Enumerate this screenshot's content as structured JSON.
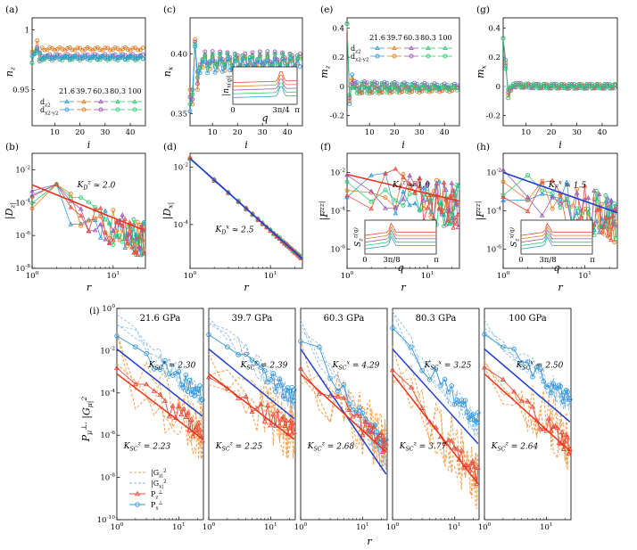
{
  "chart_data": [
    {
      "panel": "(a)",
      "type": "line",
      "xlabel": "i",
      "ylabel": "n_z",
      "xlim": [
        1,
        46
      ],
      "ylim": [
        0.92,
        1.01
      ],
      "xticks": [
        "10",
        "20",
        "30",
        "40"
      ],
      "yticks": [
        "0.95",
        "1"
      ],
      "legend": {
        "rows": [
          "d_z2",
          "d_x2-y2"
        ],
        "columns": [
          "21.6",
          "39.7",
          "60.3",
          "80.3",
          "100"
        ]
      },
      "series": [
        {
          "color": "#e67e22",
          "marker": "circle",
          "base": 0.984,
          "amp": 0.004
        },
        {
          "color": "#9b59b6",
          "marker": "circle",
          "base": 0.978,
          "amp": 0.005
        },
        {
          "color": "#2ecc71",
          "marker": "circle",
          "base": 0.976,
          "amp": 0.005
        },
        {
          "color": "#3498db",
          "marker": "circle",
          "base": 0.977,
          "amp": 0.005
        }
      ]
    },
    {
      "panel": "(c)",
      "type": "line",
      "xlabel": "i",
      "ylabel": "n_x",
      "xlim": [
        1,
        46
      ],
      "ylim": [
        0.34,
        0.43
      ],
      "xticks": [
        "10",
        "20",
        "30",
        "40"
      ],
      "yticks": [
        "0.35",
        "0.40"
      ],
      "inset": {
        "xlabel": "q",
        "ylabel": "|n_x(q)|",
        "xticks": [
          "0",
          "3π/4",
          "π"
        ]
      },
      "series": [
        {
          "color": "#e67e22",
          "base": 0.392,
          "amp": 0.006
        },
        {
          "color": "#9b59b6",
          "base": 0.396,
          "amp": 0.006
        },
        {
          "color": "#2ecc71",
          "base": 0.394,
          "amp": 0.006
        },
        {
          "color": "#3498db",
          "base": 0.39,
          "amp": 0.006
        }
      ]
    },
    {
      "panel": "(e)",
      "type": "line",
      "xlabel": "i",
      "ylabel": "m_z",
      "xlim": [
        1,
        46
      ],
      "ylim": [
        -0.27,
        0.47
      ],
      "xticks": [
        "10",
        "20",
        "30",
        "40"
      ],
      "yticks": [
        "-0.2",
        "0",
        "0.2",
        "0.4"
      ],
      "legend": {
        "rows": [
          "d_z2",
          "d_x2-y2"
        ],
        "columns": [
          "21.6",
          "39.7",
          "60.3",
          "80.3",
          "100"
        ]
      },
      "series": [
        {
          "color": "#3498db",
          "base": -0.01,
          "amp": 0.03
        },
        {
          "color": "#e67e22",
          "base": -0.02,
          "amp": 0.03
        },
        {
          "color": "#9b59b6",
          "base": 0.0,
          "amp": 0.03
        },
        {
          "color": "#2ecc71",
          "base": -0.01,
          "amp": 0.03
        }
      ]
    },
    {
      "panel": "(g)",
      "type": "line",
      "xlabel": "i",
      "ylabel": "m_x",
      "xlim": [
        1,
        46
      ],
      "ylim": [
        -0.27,
        0.47
      ],
      "xticks": [
        "10",
        "20",
        "30",
        "40"
      ],
      "yticks": [
        "-0.2",
        "0",
        "0.2",
        "0.4"
      ],
      "series": [
        {
          "color": "#3498db",
          "base": 0.0,
          "amp": 0.015
        },
        {
          "color": "#e67e22",
          "base": 0.0,
          "amp": 0.015
        },
        {
          "color": "#9b59b6",
          "base": 0.0,
          "amp": 0.015
        },
        {
          "color": "#2ecc71",
          "base": 0.0,
          "amp": 0.015
        }
      ]
    },
    {
      "panel": "(b)",
      "type": "line",
      "xscale": "log",
      "yscale": "log",
      "xlabel": "r",
      "ylabel": "|D_z|",
      "xlim": [
        1,
        25
      ],
      "ylim": [
        1e-08,
        0.1
      ],
      "xticks": [
        "10^0",
        "10^1"
      ],
      "yticks": [
        "10^-2",
        "10^-4",
        "10^-6",
        "10^-8"
      ],
      "annotation": "K_D^z ≈ 2.0",
      "fit_exponent": 2.0
    },
    {
      "panel": "(d)",
      "type": "line",
      "xscale": "log",
      "yscale": "log",
      "xlabel": "r",
      "ylabel": "|D_x|",
      "xlim": [
        1,
        25
      ],
      "ylim": [
        3e-06,
        0.03
      ],
      "xticks": [
        "10^0",
        "10^1"
      ],
      "yticks": [
        "10^-2",
        "10^-4"
      ],
      "annotation": "K_D^x ≈ 2.5",
      "fit_exponent": 2.5
    },
    {
      "panel": "(f)",
      "type": "line",
      "xscale": "log",
      "yscale": "log",
      "xlabel": "r",
      "ylabel": "|F^zz|",
      "xlim": [
        1,
        25
      ],
      "ylim": [
        1e-07,
        0.1
      ],
      "xticks": [
        "10^0",
        "10^1"
      ],
      "yticks": [
        "10^-2",
        "10^-4",
        "10^-6"
      ],
      "annotation": "K_F^z ≈ 1.0",
      "fit_exponent": 1.0,
      "inset": {
        "xlabel": "q",
        "ylabel": "S_z^z(q)",
        "xticks": [
          "0",
          "3π/8",
          "π"
        ]
      }
    },
    {
      "panel": "(h)",
      "type": "line",
      "xscale": "log",
      "yscale": "log",
      "xlabel": "r",
      "ylabel": "|F^zz|",
      "xlim": [
        1,
        25
      ],
      "ylim": [
        1e-07,
        0.1
      ],
      "xticks": [
        "10^0",
        "10^1"
      ],
      "yticks": [
        "10^-2",
        "10^-4",
        "10^-6"
      ],
      "annotation": "K_F^x ≈ 1.5",
      "fit_exponent": 1.5,
      "inset": {
        "xlabel": "q",
        "ylabel": "S_z^x(q)",
        "xticks": [
          "0",
          "3π/8",
          "π"
        ]
      }
    },
    {
      "panel": "(i)",
      "type": "line",
      "xscale": "log",
      "yscale": "log",
      "xlabel": "r",
      "ylabel": "P_μ^⊥, |G_μ|^2",
      "xlim": [
        1,
        25
      ],
      "ylim": [
        1e-10,
        1
      ],
      "xticks": [
        "10^0",
        "10^1"
      ],
      "yticks": [
        "10^0",
        "10^-2",
        "10^-4",
        "10^-6",
        "10^-8",
        "10^-10"
      ],
      "legend": [
        "|G_z|^2",
        "|G_x|^2",
        "P_z^⊥",
        "P_x^⊥"
      ],
      "subpanels": [
        {
          "title": "21.6 GPa",
          "Kx": "K_SC^x = 2.30",
          "Kz": "K_SC^z = 2.23",
          "kx": 2.3,
          "kz": 2.23
        },
        {
          "title": "39.7 GPa",
          "Kx": "K_SC^x = 2.39",
          "Kz": "K_SC^z = 2.25",
          "kx": 2.39,
          "kz": 2.25
        },
        {
          "title": "60.3 GPa",
          "Kx": "K_SC^x = 4.29",
          "Kz": "K_SC^z = 2.68",
          "kx": 4.29,
          "kz": 2.68
        },
        {
          "title": "80.3 GPa",
          "Kx": "K_SC^x = 3.25",
          "Kz": "K_SC^z = 3.77",
          "kx": 3.25,
          "kz": 3.77
        },
        {
          "title": "100 GPa",
          "Kx": "K_SC^x = 2.50",
          "Kz": "K_SC^z = 2.64",
          "kx": 2.5,
          "kz": 2.64
        }
      ]
    }
  ],
  "colors": {
    "blue": "#3498db",
    "orange": "#e67e22",
    "purple": "#9b59b6",
    "green": "#2ecc71",
    "red": "#e74c3c",
    "fitblue": "#1f3fd0",
    "fitred": "#e8341c",
    "lightblue": "#7fb6e8",
    "lightorange": "#f2a65a"
  }
}
